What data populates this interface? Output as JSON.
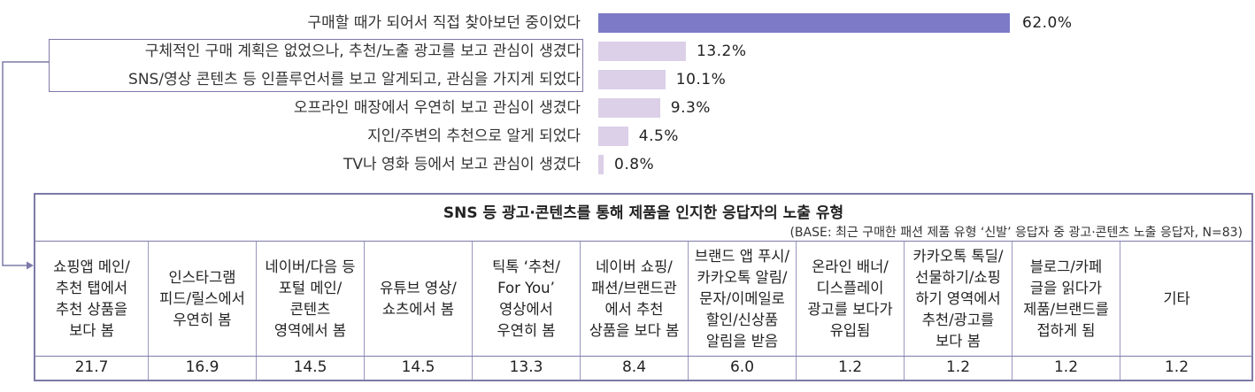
{
  "colors": {
    "highlight_bar": "#7d7bc7",
    "normal_bar": "#dccfe8",
    "frame": "#7d7aa8"
  },
  "chart_data": {
    "type": "bar",
    "orientation": "horizontal",
    "unit": "%",
    "categories": [
      "구매할 때가 되어서 직접 찾아보던 중이었다",
      "구체적인 구매 계획은 없었으나, 추천/노출 광고를 보고 관심이 생겼다",
      "SNS/영상 콘텐츠 등 인플루언서를 보고 알게되고, 관심을 가지게 되었다",
      "오프라인 매장에서 우연히 보고 관심이 생겼다",
      "지인/주변의 추천으로 알게 되었다",
      "TV나 영화 등에서 보고 관심이 생겼다"
    ],
    "values": [
      62.0,
      13.2,
      10.1,
      9.3,
      4.5,
      0.8
    ],
    "value_labels": [
      "62.0%",
      "13.2%",
      "10.1%",
      "9.3%",
      "4.5%",
      "0.8%"
    ],
    "highlighted_categories": [
      1,
      2
    ],
    "xlim": [
      0,
      100
    ],
    "grid": false
  },
  "table": {
    "title": "SNS 등 광고·콘텐츠를 통해 제품을 인지한 응답자의 노출 유형",
    "base_note": "(BASE: 최근 구매한 패션 제품 유형 ‘신발’ 응답자 중 광고·콘텐츠 노출 응답자, N=83)",
    "columns": [
      "쇼핑앱 메인/\n추천 탭에서\n추천 상품을\n보다 봄",
      "인스타그램\n피드/릴스에서\n우연히 봄",
      "네이버/다음 등\n포털 메인/\n콘텐츠\n영역에서 봄",
      "유튜브 영상/\n쇼츠에서 봄",
      "틱톡 ‘추천/\nFor You’\n영상에서\n우연히 봄",
      "네이버 쇼핑/\n패션/브랜드관\n에서 추천\n상품을 보다 봄",
      "브랜드 앱 푸시/\n카카오톡 알림/\n문자/이메일로\n할인/신상품\n알림을 받음",
      "온라인 배너/\n디스플레이\n광고를 보다가\n유입됨",
      "카카오톡 톡딜/\n선물하기/쇼핑\n하기 영역에서\n추천/광고를\n보다 봄",
      "블로그/카페\n글을 읽다가\n제품/브랜드를\n접하게 됨",
      "기타"
    ],
    "values": [
      "21.7",
      "16.9",
      "14.5",
      "14.5",
      "13.3",
      "8.4",
      "6.0",
      "1.2",
      "1.2",
      "1.2",
      "1.2"
    ]
  }
}
